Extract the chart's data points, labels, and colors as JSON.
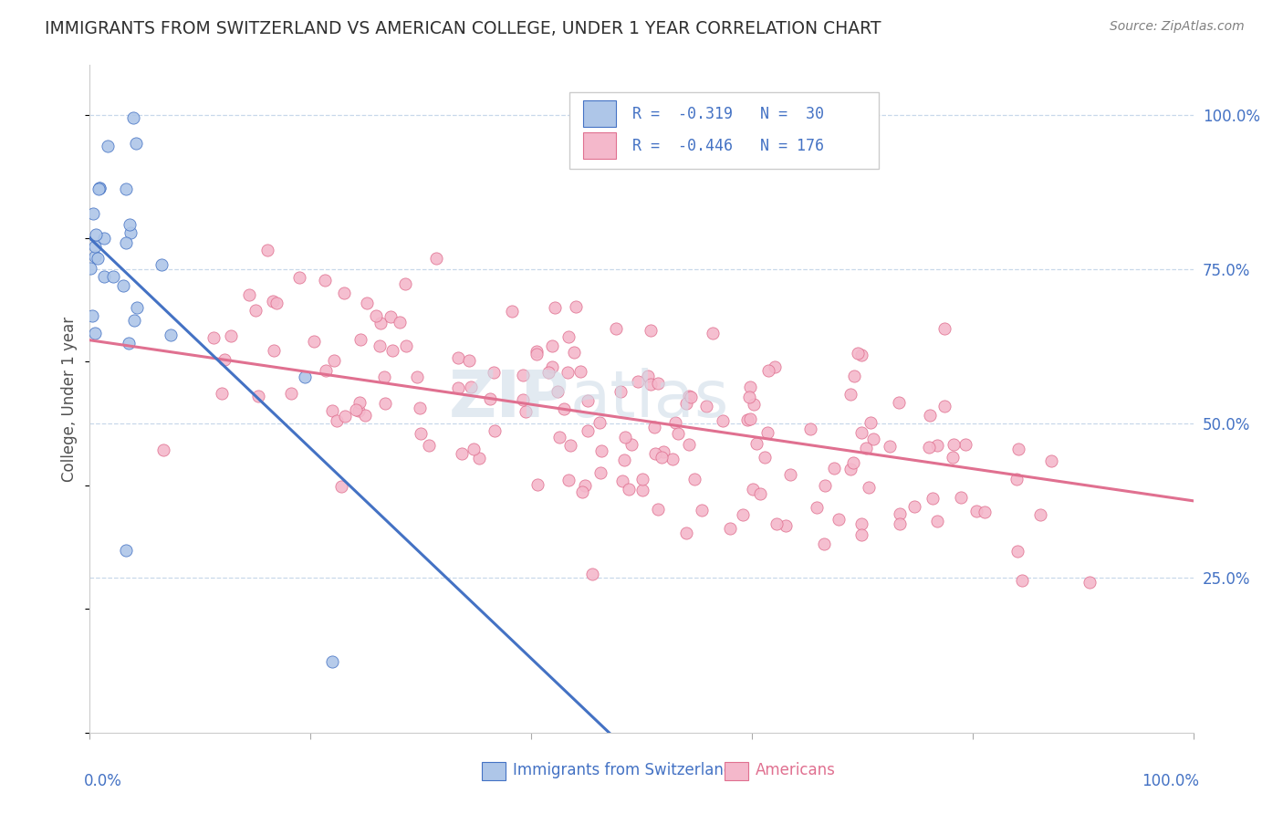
{
  "title": "IMMIGRANTS FROM SWITZERLAND VS AMERICAN COLLEGE, UNDER 1 YEAR CORRELATION CHART",
  "source": "Source: ZipAtlas.com",
  "ylabel": "College, Under 1 year",
  "blue_R": -0.319,
  "blue_N": 30,
  "pink_R": -0.446,
  "pink_N": 176,
  "blue_scatter_color": "#aec6e8",
  "blue_line_color": "#4472c4",
  "pink_scatter_color": "#f4b8cb",
  "pink_line_color": "#e07090",
  "dash_line_color": "#a0b8d0",
  "background_color": "#ffffff",
  "grid_color": "#c8d8ea",
  "title_color": "#303030",
  "source_color": "#808080",
  "axis_tick_color": "#4472c4",
  "ylabel_color": "#505050",
  "legend_text_color": "#4472c4",
  "watermark_color": "#d0dce8",
  "blue_line_intercept": 0.8,
  "blue_line_slope": -1.7,
  "pink_line_intercept": 0.635,
  "pink_line_slope": -0.26
}
